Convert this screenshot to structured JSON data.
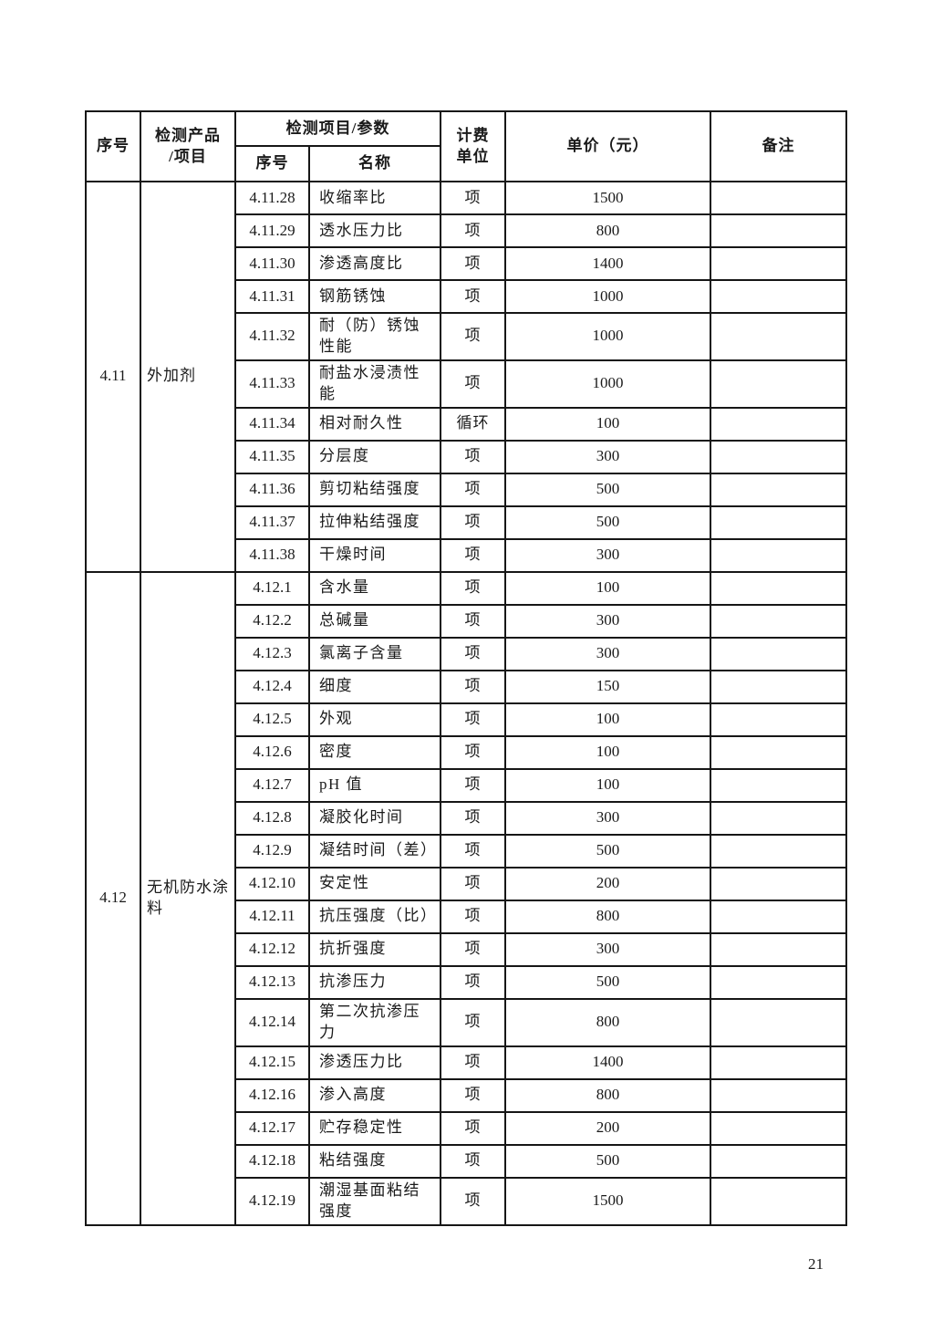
{
  "page": {
    "number": "21"
  },
  "table": {
    "header": {
      "col_index": "序号",
      "col_product_line1": "检测产品",
      "col_product_line2": "/项目",
      "col_param_group": "检测项目/参数",
      "col_param_index": "序号",
      "col_param_name": "名称",
      "col_unit_line1": "计费",
      "col_unit_line2": "单位",
      "col_price": "单价（元）",
      "col_remark": "备注"
    },
    "sections": [
      {
        "index": "4.11",
        "product": "外加剂",
        "rows": [
          {
            "no": "4.11.28",
            "name": "收缩率比",
            "unit": "项",
            "price": "1500",
            "remark": ""
          },
          {
            "no": "4.11.29",
            "name": "透水压力比",
            "unit": "项",
            "price": "800",
            "remark": ""
          },
          {
            "no": "4.11.30",
            "name": "渗透高度比",
            "unit": "项",
            "price": "1400",
            "remark": ""
          },
          {
            "no": "4.11.31",
            "name": "钢筋锈蚀",
            "unit": "项",
            "price": "1000",
            "remark": ""
          },
          {
            "no": "4.11.32",
            "name": "耐（防）锈蚀性能",
            "unit": "项",
            "price": "1000",
            "remark": ""
          },
          {
            "no": "4.11.33",
            "name": "耐盐水浸渍性能",
            "unit": "项",
            "price": "1000",
            "remark": ""
          },
          {
            "no": "4.11.34",
            "name": "相对耐久性",
            "unit": "循环",
            "price": "100",
            "remark": ""
          },
          {
            "no": "4.11.35",
            "name": "分层度",
            "unit": "项",
            "price": "300",
            "remark": ""
          },
          {
            "no": "4.11.36",
            "name": "剪切粘结强度",
            "unit": "项",
            "price": "500",
            "remark": ""
          },
          {
            "no": "4.11.37",
            "name": "拉伸粘结强度",
            "unit": "项",
            "price": "500",
            "remark": ""
          },
          {
            "no": "4.11.38",
            "name": "干燥时间",
            "unit": "项",
            "price": "300",
            "remark": ""
          }
        ]
      },
      {
        "index": "4.12",
        "product": "无机防水涂料",
        "rows": [
          {
            "no": "4.12.1",
            "name": "含水量",
            "unit": "项",
            "price": "100",
            "remark": ""
          },
          {
            "no": "4.12.2",
            "name": "总碱量",
            "unit": "项",
            "price": "300",
            "remark": ""
          },
          {
            "no": "4.12.3",
            "name": "氯离子含量",
            "unit": "项",
            "price": "300",
            "remark": ""
          },
          {
            "no": "4.12.4",
            "name": "细度",
            "unit": "项",
            "price": "150",
            "remark": ""
          },
          {
            "no": "4.12.5",
            "name": "外观",
            "unit": "项",
            "price": "100",
            "remark": ""
          },
          {
            "no": "4.12.6",
            "name": "密度",
            "unit": "项",
            "price": "100",
            "remark": ""
          },
          {
            "no": "4.12.7",
            "name": "pH 值",
            "unit": "项",
            "price": "100",
            "remark": ""
          },
          {
            "no": "4.12.8",
            "name": "凝胶化时间",
            "unit": "项",
            "price": "300",
            "remark": ""
          },
          {
            "no": "4.12.9",
            "name": "凝结时间（差）",
            "unit": "项",
            "price": "500",
            "remark": ""
          },
          {
            "no": "4.12.10",
            "name": "安定性",
            "unit": "项",
            "price": "200",
            "remark": ""
          },
          {
            "no": "4.12.11",
            "name": "抗压强度（比）",
            "unit": "项",
            "price": "800",
            "remark": ""
          },
          {
            "no": "4.12.12",
            "name": "抗折强度",
            "unit": "项",
            "price": "300",
            "remark": ""
          },
          {
            "no": "4.12.13",
            "name": "抗渗压力",
            "unit": "项",
            "price": "500",
            "remark": ""
          },
          {
            "no": "4.12.14",
            "name": "第二次抗渗压力",
            "unit": "项",
            "price": "800",
            "remark": ""
          },
          {
            "no": "4.12.15",
            "name": "渗透压力比",
            "unit": "项",
            "price": "1400",
            "remark": ""
          },
          {
            "no": "4.12.16",
            "name": "渗入高度",
            "unit": "项",
            "price": "800",
            "remark": ""
          },
          {
            "no": "4.12.17",
            "name": "贮存稳定性",
            "unit": "项",
            "price": "200",
            "remark": ""
          },
          {
            "no": "4.12.18",
            "name": "粘结强度",
            "unit": "项",
            "price": "500",
            "remark": ""
          },
          {
            "no": "4.12.19",
            "name": "潮湿基面粘结强度",
            "unit": "项",
            "price": "1500",
            "remark": ""
          }
        ]
      }
    ]
  }
}
